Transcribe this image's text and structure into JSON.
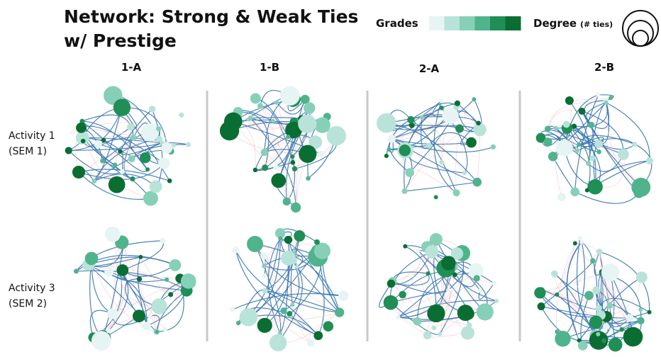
{
  "header": {
    "title_lines": [
      "Network: Strong & Weak Ties",
      "w/ Prestige"
    ]
  },
  "legend": {
    "grades": "Grades",
    "degree": "Degree",
    "degree_unit": "(# ties)"
  },
  "columns": [
    "1-A",
    "1-B",
    "2-A",
    "2-B"
  ],
  "rows": [
    [
      "Activity 1",
      "(SEM 1)"
    ],
    [
      "Activity 3",
      "(SEM 2)"
    ]
  ]
}
